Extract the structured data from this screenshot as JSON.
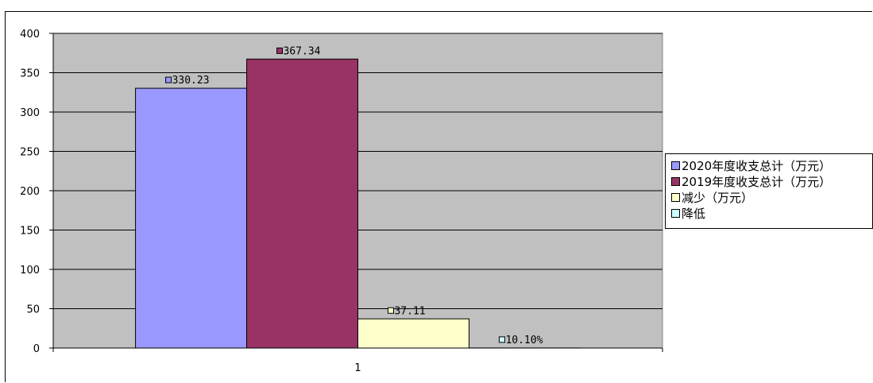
{
  "chart_data": {
    "type": "bar",
    "categories": [
      "1"
    ],
    "series": [
      {
        "name": "2020年度收支总计（万元）",
        "values": [
          330.23
        ],
        "label": "330.23",
        "color": "#9999ff"
      },
      {
        "name": "2019年度收支总计（万元）",
        "values": [
          367.34
        ],
        "label": "367.34",
        "color": "#993366"
      },
      {
        "name": "减少（万元）",
        "values": [
          37.11
        ],
        "label": "37.11",
        "color": "#ffffcc"
      },
      {
        "name": "降低",
        "values": [
          0.101
        ],
        "label": "10.10%",
        "color": "#ccffff"
      }
    ],
    "ylim": [
      0,
      400
    ],
    "yticks": [
      "0",
      "50",
      "100",
      "150",
      "200",
      "250",
      "300",
      "350",
      "400"
    ],
    "grid": true,
    "plot_background": "#c0c0c0",
    "legend_position": "right"
  }
}
